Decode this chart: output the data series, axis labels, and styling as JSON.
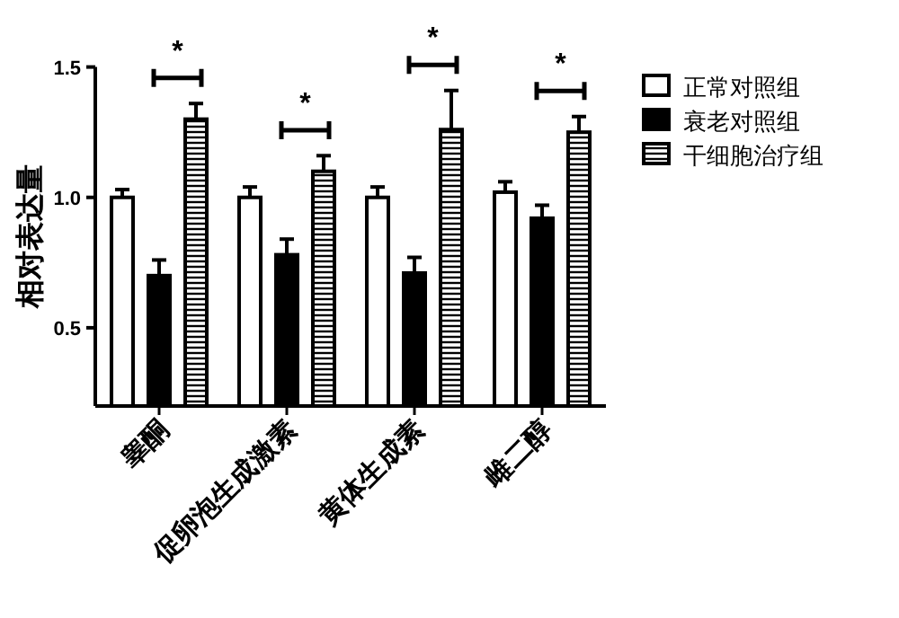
{
  "chart_data": {
    "type": "bar",
    "ylabel": "相对表达量",
    "categories": [
      "睾酮",
      "促卵泡生成激素",
      "黄体生成素",
      "雌二醇"
    ],
    "series": [
      {
        "name": "正常对照组",
        "color": "#ffffff",
        "values": [
          1.0,
          1.0,
          1.0,
          1.02
        ],
        "errors": [
          [
            1.0,
            1.03
          ],
          [
            1.0,
            1.04
          ],
          [
            1.0,
            1.04
          ],
          [
            1.02,
            1.06
          ]
        ]
      },
      {
        "name": "衰老对照组",
        "color": "#000000",
        "values": [
          0.7,
          0.78,
          0.71,
          0.92
        ],
        "errors": [
          [
            0.7,
            0.76
          ],
          [
            0.78,
            0.84
          ],
          [
            0.71,
            0.77
          ],
          [
            0.92,
            0.97
          ]
        ]
      },
      {
        "name": "干细胞治疗组",
        "color": "#000000",
        "values": [
          1.3,
          1.1,
          1.26,
          1.25
        ],
        "errors": [
          [
            1.3,
            1.36
          ],
          [
            1.1,
            1.16
          ],
          [
            1.26,
            1.41
          ],
          [
            1.25,
            1.31
          ]
        ]
      }
    ],
    "ylim": [
      0.2,
      1.5
    ],
    "yticks": [
      {
        "value": 0.5,
        "label": "0.5"
      },
      {
        "value": 1.0,
        "label": "1.0"
      },
      {
        "value": 1.5,
        "label": "1.5"
      }
    ],
    "annotations": [
      "*",
      "*",
      "*",
      "*"
    ],
    "grid": false,
    "legend": "right"
  }
}
